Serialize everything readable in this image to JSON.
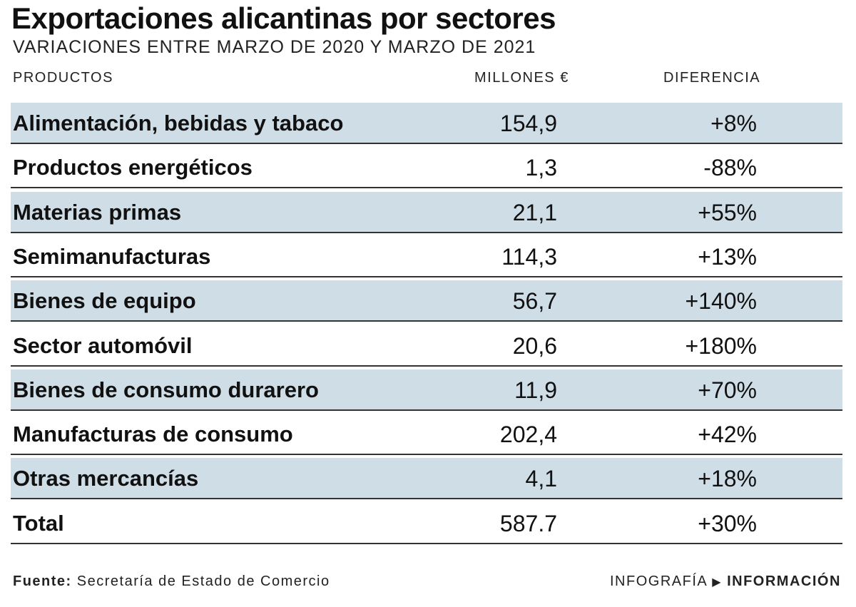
{
  "header": {
    "title": "Exportaciones alicantinas por sectores",
    "subtitle": "VARIACIONES ENTRE MARZO DE 2020 Y MARZO DE 2021"
  },
  "table": {
    "columns": [
      "PRODUCTOS",
      "MILLONES €",
      "DIFERENCIA"
    ],
    "rows": [
      [
        "Alimentación, bebidas y tabaco",
        "154,9",
        "+8%"
      ],
      [
        "Productos energéticos",
        "1,3",
        "-88%"
      ],
      [
        "Materias primas",
        "21,1",
        "+55%"
      ],
      [
        "Semimanufacturas",
        "114,3",
        "+13%"
      ],
      [
        "Bienes de equipo",
        "56,7",
        "+140%"
      ],
      [
        "Sector automóvil",
        "20,6",
        "+180%"
      ],
      [
        "Bienes de consumo durarero",
        "11,9",
        "+70%"
      ],
      [
        "Manufacturas de consumo",
        "202,4",
        "+42%"
      ],
      [
        "Otras mercancías",
        "4,1",
        "+18%"
      ],
      [
        "Total",
        "587.7",
        "+30%"
      ]
    ]
  },
  "footer": {
    "source_label": "Fuente:",
    "source": "Secretaría de Estado de Comercio",
    "credit": "INFOGRAFÍA",
    "brand": "INFORMACIÓN"
  }
}
